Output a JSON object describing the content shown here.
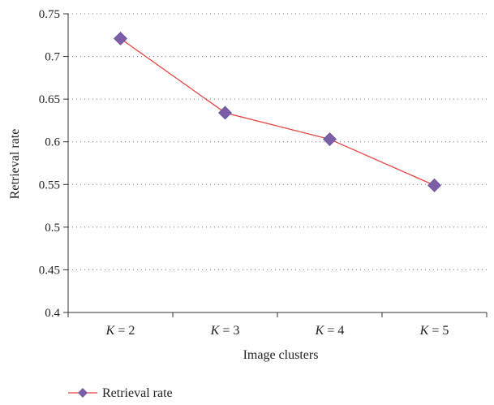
{
  "chart_data": {
    "type": "line",
    "title": "",
    "xlabel": "Image clusters",
    "ylabel": "Retrieval rate",
    "categories": [
      {
        "var": "K",
        "rest": " = 2"
      },
      {
        "var": "K",
        "rest": " = 3"
      },
      {
        "var": "K",
        "rest": " = 4"
      },
      {
        "var": "K",
        "rest": " = 5"
      }
    ],
    "series": [
      {
        "name": "Retrieval rate",
        "values": [
          0.721,
          0.634,
          0.603,
          0.549
        ],
        "line_color": "#e8403c",
        "marker_color": "#7b5ea7",
        "marker": "diamond"
      }
    ],
    "ylim": [
      0.4,
      0.75
    ],
    "yticks": [
      0.4,
      0.45,
      0.5,
      0.55,
      0.6,
      0.65,
      0.7,
      0.75
    ],
    "ytick_labels": [
      "0.4",
      "0.45",
      "0.5",
      "0.55",
      "0.6",
      "0.65",
      "0.7",
      "0.75"
    ],
    "grid": "horizontal-dotted",
    "legend_position": "bottom-left"
  }
}
